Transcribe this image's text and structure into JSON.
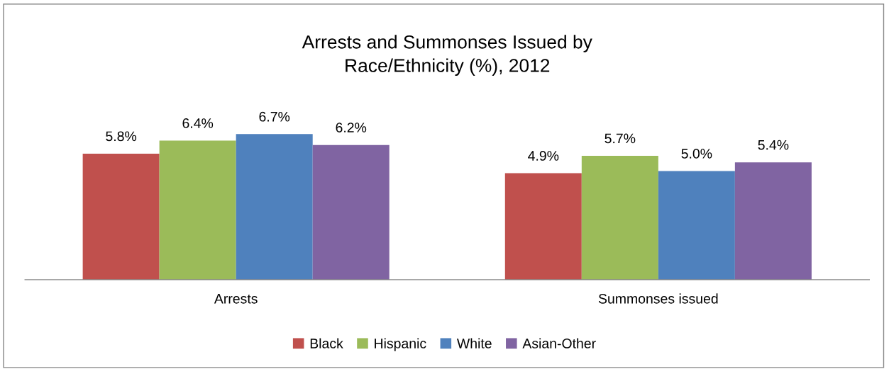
{
  "chart_data": {
    "type": "bar",
    "title": "Arrests and Summonses Issued by\nRace/Ethnicity (%), 2012",
    "categories": [
      "Arrests",
      "Summonses issued"
    ],
    "series": [
      {
        "name": "Black",
        "color": "#c0504d",
        "values": [
          5.8,
          4.9
        ],
        "value_labels": [
          "5.8%",
          "4.9%"
        ]
      },
      {
        "name": "Hispanic",
        "color": "#9bbb59",
        "values": [
          6.4,
          5.7
        ],
        "value_labels": [
          "6.4%",
          "5.7%"
        ]
      },
      {
        "name": "White",
        "color": "#4f81bd",
        "values": [
          6.7,
          5.0
        ],
        "value_labels": [
          "6.7%",
          "5.0%"
        ]
      },
      {
        "name": "Asian-Other",
        "color": "#8064a2",
        "values": [
          6.2,
          5.4
        ],
        "value_labels": [
          "6.2%",
          "5.4%"
        ]
      }
    ],
    "grid": false,
    "legend": "bottom"
  }
}
